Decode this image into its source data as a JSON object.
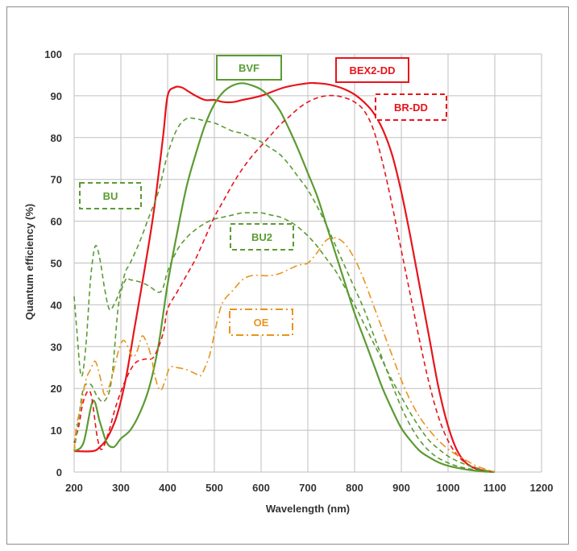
{
  "chart_data": {
    "type": "line",
    "title": "",
    "xlabel": "Wavelength (nm)",
    "ylabel": "Quantum efficiency (%)",
    "xlim": [
      200,
      1200
    ],
    "ylim": [
      0,
      100
    ],
    "xticks": [
      200,
      300,
      400,
      500,
      600,
      700,
      800,
      900,
      1000,
      1100,
      1200
    ],
    "yticks": [
      0,
      10,
      20,
      30,
      40,
      50,
      60,
      70,
      80,
      90,
      100
    ],
    "grid": true,
    "legend": "inline labels",
    "series": [
      {
        "name": "BEX2-DD",
        "color": "#e8141b",
        "style": "solid",
        "x": [
          200,
          240,
          255,
          270,
          290,
          310,
          330,
          350,
          370,
          390,
          400,
          415,
          430,
          445,
          460,
          480,
          500,
          520,
          540,
          560,
          600,
          650,
          700,
          720,
          740,
          760,
          780,
          800,
          820,
          840,
          860,
          880,
          900,
          920,
          940,
          960,
          980,
          1000,
          1020,
          1040,
          1060,
          1080,
          1100
        ],
        "y": [
          5,
          5,
          6,
          8,
          13,
          22,
          35,
          48,
          62,
          80,
          90,
          92,
          92,
          91,
          90,
          89,
          89,
          88.5,
          88.5,
          89,
          90,
          92,
          93,
          93,
          92.8,
          92.3,
          91.5,
          90.3,
          88.5,
          86,
          82,
          76,
          67,
          56,
          44,
          32,
          20,
          11,
          5,
          2,
          0.8,
          0.3,
          0
        ]
      },
      {
        "name": "BVF",
        "color": "#5b9b32",
        "style": "solid",
        "x": [
          200,
          220,
          240,
          255,
          270,
          285,
          300,
          320,
          340,
          360,
          380,
          400,
          420,
          440,
          460,
          480,
          500,
          520,
          540,
          560,
          580,
          600,
          620,
          640,
          660,
          680,
          700,
          720,
          740,
          760,
          780,
          800,
          820,
          840,
          860,
          880,
          900,
          920,
          940,
          960,
          980,
          1000,
          1020,
          1040,
          1060,
          1080,
          1100
        ],
        "y": [
          5,
          7,
          17,
          12,
          7,
          6,
          8,
          10,
          14,
          20,
          30,
          45,
          57,
          68,
          76,
          83,
          88,
          91,
          92.5,
          93,
          92.5,
          91.5,
          89.5,
          86.5,
          82,
          77,
          71.5,
          66,
          59,
          52,
          45,
          38,
          32,
          26,
          20,
          15,
          10.5,
          7.5,
          5,
          3.5,
          2.3,
          1.5,
          1,
          0.6,
          0.3,
          0.1,
          0
        ]
      },
      {
        "name": "BR-DD",
        "color": "#e8141b",
        "style": "dashed",
        "x": [
          200,
          210,
          220,
          235,
          250,
          260,
          275,
          290,
          310,
          330,
          350,
          370,
          390,
          400,
          420,
          440,
          460,
          480,
          500,
          520,
          540,
          560,
          580,
          600,
          620,
          640,
          660,
          680,
          700,
          720,
          740,
          760,
          780,
          800,
          820,
          840,
          860,
          880,
          900,
          920,
          940,
          960,
          980,
          1000,
          1020,
          1040,
          1060,
          1080,
          1100
        ],
        "y": [
          7,
          11,
          17,
          19,
          8,
          5.5,
          10,
          16,
          22,
          26,
          27,
          27.5,
          33,
          39,
          43,
          47,
          51,
          56,
          61,
          65,
          69,
          72.5,
          75.5,
          78,
          80.5,
          83,
          85,
          87,
          88.5,
          89.5,
          90,
          90,
          89.5,
          88.5,
          86.5,
          82,
          74,
          64,
          53,
          42,
          31,
          21,
          13,
          7.5,
          4,
          2,
          1,
          0.3,
          0
        ]
      },
      {
        "name": "BU",
        "color": "#5b9b32",
        "style": "dashed",
        "x": [
          200,
          205,
          215,
          225,
          235,
          245,
          255,
          265,
          275,
          285,
          300,
          310,
          320,
          340,
          360,
          380,
          400,
          420,
          440,
          460,
          480,
          500,
          520,
          540,
          560,
          580,
          600,
          620,
          640,
          660,
          680,
          700,
          720,
          740,
          760,
          780,
          800,
          820,
          840,
          860,
          880,
          900,
          920,
          940,
          960,
          980,
          1000,
          1020,
          1040,
          1060,
          1080,
          1100
        ],
        "y": [
          42,
          35,
          23,
          30,
          46,
          54,
          51,
          44,
          39,
          40,
          44,
          48,
          50,
          55,
          61,
          67,
          76,
          82,
          84.5,
          84.5,
          84,
          83.5,
          82.5,
          81.5,
          81,
          80,
          79,
          77.5,
          76,
          73.5,
          70.5,
          67.5,
          63.5,
          59,
          54,
          49,
          44,
          39,
          33,
          27,
          21,
          15.5,
          11,
          7.5,
          5,
          3.3,
          2.2,
          1.4,
          0.9,
          0.5,
          0.2,
          0
        ]
      },
      {
        "name": "BU2",
        "color": "#5b9b32",
        "style": "dashed",
        "x": [
          200,
          210,
          220,
          235,
          250,
          265,
          280,
          295,
          310,
          320,
          340,
          360,
          380,
          390,
          400,
          420,
          440,
          460,
          480,
          500,
          520,
          540,
          560,
          580,
          600,
          620,
          640,
          660,
          680,
          700,
          720,
          740,
          760,
          780,
          800,
          820,
          840,
          860,
          880,
          900,
          920,
          940,
          960,
          980,
          1000,
          1020,
          1040,
          1060,
          1080,
          1100
        ],
        "y": [
          5,
          13,
          20,
          21,
          18,
          17,
          22,
          40,
          46,
          46,
          45.5,
          44.5,
          43,
          44,
          48,
          53,
          56,
          58,
          59.5,
          60.5,
          61,
          61.5,
          62,
          62,
          62,
          61.5,
          61,
          60,
          58.5,
          56.5,
          54,
          51,
          48,
          44,
          40,
          35.5,
          31,
          26.5,
          22,
          18,
          14,
          10.5,
          7.5,
          5.5,
          3.8,
          2.6,
          1.7,
          1,
          0.4,
          0
        ]
      },
      {
        "name": "OE",
        "color": "#e8941b",
        "style": "dashdot",
        "x": [
          200,
          205,
          215,
          225,
          235,
          245,
          255,
          265,
          275,
          285,
          295,
          305,
          315,
          325,
          335,
          345,
          355,
          365,
          375,
          385,
          395,
          405,
          420,
          440,
          460,
          470,
          480,
          490,
          500,
          510,
          520,
          540,
          560,
          580,
          600,
          620,
          640,
          660,
          680,
          700,
          720,
          740,
          760,
          780,
          800,
          820,
          840,
          860,
          880,
          900,
          920,
          940,
          960,
          980,
          1000,
          1020,
          1040,
          1060,
          1080,
          1100
        ],
        "y": [
          5,
          11,
          16,
          22,
          24.5,
          26.5,
          23,
          18.5,
          20.5,
          24.5,
          29,
          31.5,
          30,
          27.5,
          29,
          32.5,
          31,
          27.5,
          22,
          19.5,
          22,
          25,
          25,
          24.5,
          23.5,
          23,
          25,
          28,
          33,
          38,
          41,
          43.5,
          46,
          47,
          47,
          47,
          47.5,
          48.5,
          49.5,
          50,
          52.5,
          55.5,
          56,
          54.5,
          51,
          46,
          40,
          34,
          28,
          22,
          17,
          13,
          10,
          7.5,
          5.5,
          4,
          2.7,
          1.5,
          0.7,
          0
        ]
      }
    ],
    "annotations": [
      {
        "text": "BVF",
        "color": "#5b9b32",
        "border": "solid"
      },
      {
        "text": "BEX2-DD",
        "color": "#e8141b",
        "border": "solid"
      },
      {
        "text": "BR-DD",
        "color": "#e8141b",
        "border": "dashed"
      },
      {
        "text": "BU",
        "color": "#5b9b32",
        "border": "dashed"
      },
      {
        "text": "BU2",
        "color": "#5b9b32",
        "border": "dashed"
      },
      {
        "text": "OE",
        "color": "#e8941b",
        "border": "dashdot"
      }
    ]
  }
}
